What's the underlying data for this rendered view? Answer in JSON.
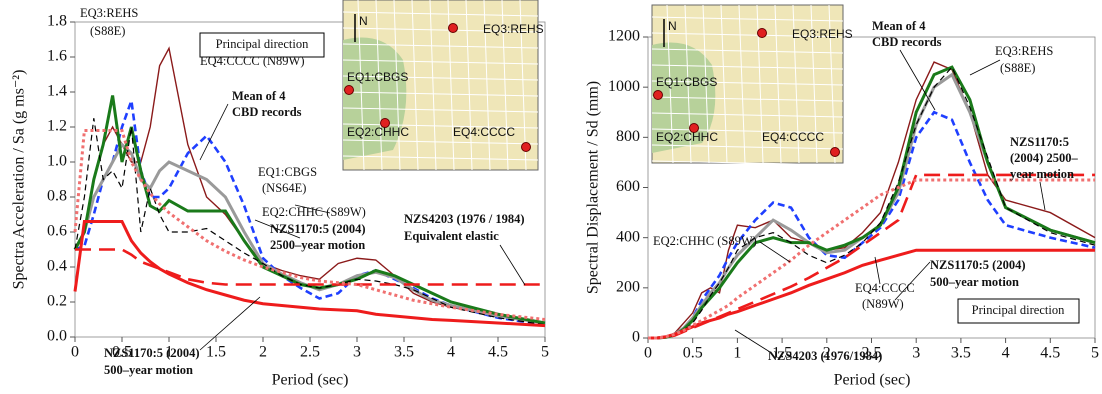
{
  "chart_data": [
    {
      "type": "line",
      "xlabel": "Period (sec)",
      "ylabel": "Spectra Acceleration / Sa (g ms⁻²)",
      "xlim": [
        0,
        5
      ],
      "xticks": [
        0,
        0.5,
        1,
        1.5,
        2,
        2.5,
        3,
        3.5,
        4,
        4.5,
        5
      ],
      "ylim": [
        0,
        1.8
      ],
      "yticks": [
        {
          "value": 0,
          "label": "0.0"
        },
        0.2,
        0.4,
        0.6,
        0.8,
        {
          "value": 1,
          "label": "1.0"
        },
        1.2,
        1.4,
        1.6,
        1.8
      ],
      "x": [
        0,
        0.1,
        0.2,
        0.3,
        0.4,
        0.5,
        0.6,
        0.7,
        0.8,
        0.9,
        1.0,
        1.2,
        1.4,
        1.6,
        1.8,
        2.0,
        2.2,
        2.4,
        2.6,
        2.8,
        3.0,
        3.2,
        3.4,
        3.6,
        3.8,
        4.0,
        4.5,
        5.0
      ],
      "series": [
        {
          "color": "#8b1a1a",
          "style": "solid",
          "values": [
            0.5,
            0.6,
            0.9,
            1.1,
            1.2,
            1.1,
            1.0,
            1.0,
            1.2,
            1.55,
            1.65,
            1.1,
            0.8,
            0.7,
            0.55,
            0.42,
            0.38,
            0.35,
            0.33,
            0.42,
            0.45,
            0.44,
            0.35,
            0.25,
            0.2,
            0.17,
            0.12,
            0.08
          ]
        },
        {
          "color": "#1f3fff",
          "style": "dashed",
          "values": [
            0.5,
            0.52,
            0.7,
            0.9,
            1.0,
            1.2,
            1.35,
            0.95,
            0.8,
            0.8,
            0.85,
            1.05,
            1.15,
            1.0,
            0.75,
            0.45,
            0.35,
            0.28,
            0.22,
            0.25,
            0.35,
            0.38,
            0.33,
            0.28,
            0.22,
            0.18,
            0.11,
            0.07
          ]
        },
        {
          "color": "#9a9a9a",
          "style": "bold",
          "values": [
            0.5,
            0.6,
            0.8,
            0.9,
            1.0,
            1.1,
            1.05,
            0.9,
            0.85,
            0.95,
            1.0,
            0.95,
            0.9,
            0.8,
            0.6,
            0.42,
            0.36,
            0.31,
            0.27,
            0.3,
            0.35,
            0.37,
            0.34,
            0.27,
            0.21,
            0.18,
            0.12,
            0.08
          ]
        },
        {
          "color": "#1a7a1a",
          "style": "bold",
          "values": [
            0.5,
            0.6,
            0.9,
            1.1,
            1.38,
            1.0,
            1.2,
            0.95,
            0.75,
            0.72,
            0.78,
            0.72,
            0.72,
            0.72,
            0.55,
            0.4,
            0.35,
            0.3,
            0.28,
            0.3,
            0.33,
            0.38,
            0.35,
            0.3,
            0.25,
            0.2,
            0.13,
            0.08
          ]
        },
        {
          "color": "#000000",
          "style": "thin-dashed",
          "values": [
            0.5,
            0.8,
            1.25,
            0.9,
            0.95,
            0.85,
            1.2,
            0.6,
            0.85,
            0.7,
            0.6,
            0.6,
            0.62,
            0.55,
            0.48,
            0.42,
            0.35,
            0.3,
            0.28,
            0.3,
            0.33,
            0.32,
            0.3,
            0.27,
            0.22,
            0.17,
            0.11,
            0.07
          ]
        },
        {
          "color": "#ee1c1c",
          "style": "bold",
          "values": [
            0.26,
            0.66,
            0.66,
            0.66,
            0.66,
            0.66,
            0.55,
            0.48,
            0.43,
            0.39,
            0.36,
            0.31,
            0.27,
            0.24,
            0.21,
            0.19,
            0.18,
            0.17,
            0.16,
            0.155,
            0.15,
            0.13,
            0.12,
            0.11,
            0.1,
            0.095,
            0.08,
            0.065
          ]
        },
        {
          "color": "#ee1c1c",
          "style": "long-dashed",
          "values": [
            0.5,
            0.5,
            0.5,
            0.5,
            0.5,
            0.5,
            0.47,
            0.43,
            0.41,
            0.39,
            0.37,
            0.33,
            0.31,
            0.3,
            0.3,
            0.3,
            0.3,
            0.3,
            0.3,
            0.3,
            0.3,
            0.3,
            0.3,
            0.3,
            0.3,
            0.3,
            0.3,
            0.3
          ]
        },
        {
          "color": "#f07070",
          "style": "dotted",
          "values": [
            0.6,
            1.18,
            1.18,
            1.18,
            1.18,
            1.18,
            1.0,
            0.9,
            0.82,
            0.76,
            0.71,
            0.63,
            0.55,
            0.49,
            0.44,
            0.4,
            0.37,
            0.34,
            0.32,
            0.31,
            0.3,
            0.27,
            0.24,
            0.21,
            0.19,
            0.17,
            0.13,
            0.1
          ]
        }
      ],
      "annotations": [
        "EQ3:REHS",
        "(S88E)",
        "Principal direction",
        "EQ4:CCCC (N89W)",
        "Mean of 4",
        "CBD records",
        "EQ1:CBGS",
        "(NS64E)",
        "EQ2:CHHC (S89W)",
        "NZS4203 (1976 / 1984)",
        "Equivalent elastic",
        "NZS1170:5 (2004)",
        "2500–year motion",
        "NZS1170:5 (2004)",
        "500–year motion"
      ],
      "inset_labels": [
        "N",
        "EQ3:REHS",
        "EQ1:CBGS",
        "EQ2:CHHC",
        "EQ4:CCCC"
      ]
    },
    {
      "type": "line",
      "xlabel": "Period (sec)",
      "ylabel": "Spectral Displacement / Sd (mm)",
      "xlim": [
        0,
        5
      ],
      "xticks": [
        0,
        0.5,
        1,
        1.5,
        2,
        2.5,
        3,
        3.5,
        4,
        4.5,
        5
      ],
      "ylim": [
        0,
        1200
      ],
      "yticks": [
        0,
        200,
        400,
        600,
        800,
        1000,
        1200
      ],
      "x": [
        0,
        0.1,
        0.2,
        0.3,
        0.4,
        0.5,
        0.6,
        0.7,
        0.8,
        0.9,
        1.0,
        1.2,
        1.4,
        1.6,
        1.8,
        2.0,
        2.2,
        2.4,
        2.6,
        2.8,
        3.0,
        3.2,
        3.4,
        3.6,
        3.8,
        4.0,
        4.5,
        5.0
      ],
      "series": [
        {
          "color": "#8b1a1a",
          "style": "solid",
          "values": [
            0,
            0,
            5,
            20,
            60,
            100,
            180,
            200,
            180,
            350,
            450,
            440,
            470,
            400,
            380,
            350,
            360,
            420,
            500,
            700,
            950,
            1100,
            1070,
            900,
            650,
            550,
            500,
            400
          ]
        },
        {
          "color": "#1f3fff",
          "style": "dashed",
          "values": [
            0,
            0,
            5,
            15,
            40,
            80,
            150,
            200,
            250,
            320,
            380,
            470,
            540,
            520,
            400,
            330,
            320,
            380,
            440,
            550,
            800,
            900,
            870,
            700,
            550,
            450,
            400,
            360
          ]
        },
        {
          "color": "#9a9a9a",
          "style": "bold",
          "values": [
            0,
            0,
            3,
            15,
            40,
            80,
            130,
            180,
            220,
            280,
            330,
            400,
            470,
            430,
            380,
            340,
            350,
            400,
            450,
            580,
            850,
            1000,
            1050,
            900,
            700,
            520,
            430,
            380
          ]
        },
        {
          "color": "#1a7a1a",
          "style": "bold",
          "values": [
            0,
            0,
            3,
            12,
            35,
            70,
            120,
            160,
            200,
            250,
            300,
            380,
            400,
            380,
            380,
            350,
            370,
            400,
            450,
            600,
            900,
            1050,
            1080,
            950,
            700,
            520,
            430,
            380
          ]
        },
        {
          "color": "#000000",
          "style": "thin-dashed",
          "values": [
            0,
            0,
            3,
            10,
            30,
            60,
            110,
            170,
            220,
            280,
            350,
            400,
            420,
            380,
            330,
            300,
            330,
            380,
            460,
            620,
            850,
            1000,
            1080,
            920,
            720,
            520,
            420,
            370
          ]
        },
        {
          "color": "#ee1c1c",
          "style": "bold",
          "values": [
            0,
            0,
            5,
            15,
            30,
            45,
            60,
            70,
            80,
            95,
            105,
            130,
            155,
            180,
            210,
            235,
            260,
            290,
            310,
            330,
            350,
            350,
            350,
            350,
            350,
            350,
            350,
            350
          ]
        },
        {
          "color": "#ee1c1c",
          "style": "long-dashed",
          "values": [
            0,
            0,
            3,
            10,
            25,
            40,
            55,
            70,
            85,
            100,
            115,
            145,
            175,
            205,
            240,
            280,
            320,
            370,
            420,
            470,
            650,
            650,
            650,
            650,
            650,
            650,
            650,
            650
          ]
        },
        {
          "color": "#f07070",
          "style": "dotted",
          "values": [
            0,
            0,
            5,
            15,
            30,
            50,
            70,
            90,
            110,
            130,
            160,
            210,
            260,
            310,
            370,
            420,
            470,
            520,
            570,
            600,
            630,
            630,
            630,
            630,
            630,
            630,
            630,
            630
          ]
        }
      ],
      "annotations": [
        "Mean of 4",
        "CBD records",
        "EQ3:REHS",
        "(S88E)",
        "NZS1170:5",
        "(2004) 2500–",
        "year motion",
        "EQ2:CHHC (S89W)",
        "NZS1170:5 (2004)",
        "500–year motion",
        "EQ4:CCCC",
        "(N89W)",
        "Principal direction",
        "NZS4203 (1976/1984)"
      ],
      "inset_labels": [
        "N",
        "EQ3:REHS",
        "EQ1:CBGS",
        "EQ2:CHHC",
        "EQ4:CCCC"
      ]
    }
  ]
}
